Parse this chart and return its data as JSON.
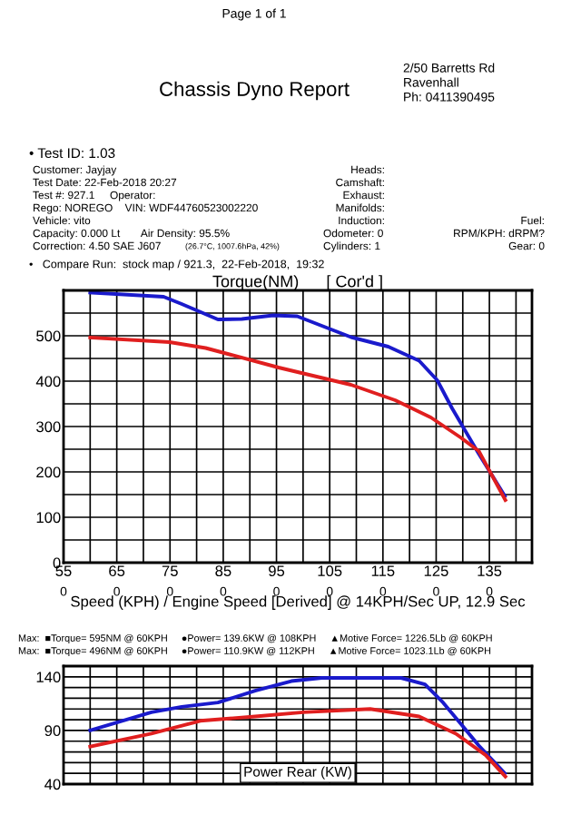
{
  "chart_data": [
    {
      "type": "line",
      "title": "Torque(NM)      [ Cor'd ]",
      "xlabel": "Speed (KPH) / Engine Speed [Derived] @ 14KPH/Sec UP, 12.9 Sec",
      "annotations": [
        "Page 1 of 1",
        "Chassis Dyno Report",
        "2/50 Barretts Rd",
        "Ravenhall",
        "Ph: 0411390495",
        "• Test ID: 1.03",
        "Customer: Jayjay",
        "Test Date: 22-Feb-2018 20:27",
        "Test #: 927.1     Operator:",
        "Rego: NOREGO    VIN: WDF44760523002220",
        "Vehicle: vito",
        "Capacity: 0.000 Lt       Air Density: 95.5%",
        "Correction: 4.50 SAE J607",
        "(26.7°C, 1007.6hPa, 42%)",
        "Heads:",
        "Camshaft:",
        "Exhaust:",
        "Manifolds:",
        "Induction:",
        "Odometer: 0",
        "Cylinders: 1",
        "Fuel:",
        "RPM/KPH: dRPM?",
        "Gear: 0",
        "•   Compare Run:  stock map / 921.3,  22-Feb-2018,  19:32",
        "0",
        "0",
        "0",
        "0",
        "0",
        "0",
        "0",
        "0",
        "0"
      ],
      "xlim": [
        55,
        143
      ],
      "ylim": [
        0,
        600
      ],
      "xticks": [
        55,
        {
          "value": 60,
          "label": null
        },
        65,
        {
          "value": 70,
          "label": null
        },
        75,
        {
          "value": 80,
          "label": null
        },
        85,
        {
          "value": 90,
          "label": null
        },
        95,
        {
          "value": 100,
          "label": null
        },
        105,
        {
          "value": 110,
          "label": null
        },
        115,
        {
          "value": 120,
          "label": null
        },
        125,
        {
          "value": 130,
          "label": null
        },
        135,
        {
          "value": 140,
          "label": null
        }
      ],
      "yticks": [
        0,
        {
          "value": 50,
          "label": null
        },
        100,
        {
          "value": 150,
          "label": null
        },
        200,
        {
          "value": 250,
          "label": null
        },
        300,
        {
          "value": 350,
          "label": null
        },
        400,
        {
          "value": 450,
          "label": null
        },
        500,
        {
          "value": 550,
          "label": null
        }
      ],
      "grid": true,
      "marker": "none",
      "line_style": "solid",
      "series": [
        {
          "color": "#1a1acc",
          "x": [
            60,
            73.8,
            77.2,
            84,
            88.5,
            94.4,
            98.9,
            109,
            116,
            121.8,
            125.2,
            128,
            133,
            137.9
          ],
          "values": [
            595,
            586,
            570,
            536,
            537,
            545,
            543,
            497,
            476,
            445,
            402,
            340,
            240,
            147
          ]
        },
        {
          "color": "#e01f1f",
          "x": [
            60,
            74.9,
            81.7,
            95.4,
            109,
            117.3,
            124,
            129.7,
            133,
            138
          ],
          "values": [
            496,
            486,
            473,
            430,
            392,
            358,
            320,
            275,
            246,
            138
          ]
        }
      ]
    },
    {
      "type": "line",
      "title": "Power Rear (KW)",
      "annotations": [
        "Max:  ■Torque= 595NM @ 60KPH     ●Power= 139.6KW @ 108KPH     ▲Motive Force= 1226.5Lb @ 60KPH",
        "Max:  ■Torque= 496NM @ 60KPH     ●Power= 110.9KW @ 112KPH     ▲Motive Force= 1023.1Lb @ 60KPH"
      ],
      "xlim": [
        55,
        143
      ],
      "ylim": [
        40,
        150
      ],
      "tick_labels": "y",
      "xticks": [
        55,
        60,
        65,
        70,
        75,
        80,
        85,
        90,
        95,
        100,
        105,
        110,
        115,
        120,
        125,
        130,
        135,
        140
      ],
      "yticks": [
        40,
        {
          "value": 50,
          "label": null
        },
        {
          "value": 60,
          "label": null
        },
        {
          "value": 70,
          "label": null
        },
        {
          "value": 80,
          "label": null
        },
        90,
        {
          "value": 100,
          "label": null
        },
        {
          "value": 110,
          "label": null
        },
        {
          "value": 120,
          "label": null
        },
        {
          "value": 130,
          "label": null
        },
        140
      ],
      "grid": true,
      "marker": "none",
      "line_style": "solid",
      "series": [
        {
          "color": "#1a1acc",
          "x": [
            60,
            71.5,
            77.2,
            84,
            91,
            97.8,
            103.5,
            118.4,
            122.9,
            126.3,
            133,
            137.9
          ],
          "values": [
            90,
            107,
            112,
            116,
            127,
            136,
            139,
            139,
            133,
            116,
            76,
            50
          ]
        },
        {
          "color": "#e01f1f",
          "x": [
            60,
            71.5,
            80.7,
            91,
            100,
            112.6,
            121.8,
            128.7,
            134.3,
            138
          ],
          "values": [
            75,
            87,
            99,
            103,
            107,
            110,
            103,
            87,
            67,
            47
          ]
        }
      ]
    }
  ]
}
